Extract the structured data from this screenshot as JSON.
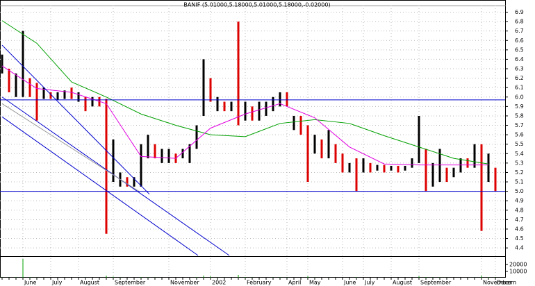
{
  "chart_data": {
    "type": "ohlc",
    "title": "BANIF (5.01000,5.18000,5.01000,5.18000,-0.02000)",
    "categories": [
      null,
      null,
      null,
      "June",
      null,
      null,
      null,
      "July",
      null,
      null,
      null,
      "August",
      null,
      null,
      null,
      null,
      "September",
      null,
      null,
      null,
      null,
      null,
      null,
      null,
      "November",
      null,
      null,
      null,
      null,
      null,
      "2002",
      null,
      null,
      null,
      null,
      "February",
      null,
      null,
      null,
      null,
      null,
      "April",
      null,
      null,
      "May",
      null,
      null,
      null,
      null,
      "June",
      null,
      null,
      "July",
      null,
      null,
      null,
      "August",
      null,
      null,
      null,
      "September",
      null,
      null,
      null,
      null,
      null,
      null,
      null,
      null,
      "November",
      null,
      "Decem"
    ],
    "high": [
      6.45,
      6.3,
      6.25,
      6.7,
      6.2,
      6.15,
      6.1,
      6.05,
      6.05,
      6.07,
      6.1,
      6.05,
      6.0,
      6.0,
      6.0,
      5.98,
      5.55,
      5.2,
      5.15,
      5.15,
      5.5,
      5.6,
      5.5,
      5.45,
      5.45,
      5.4,
      5.45,
      5.5,
      5.7,
      6.4,
      6.2,
      6.0,
      5.95,
      5.95,
      6.8,
      5.95,
      5.9,
      5.95,
      5.95,
      6.0,
      6.05,
      6.05,
      5.8,
      5.8,
      5.7,
      5.6,
      5.55,
      5.65,
      5.5,
      5.4,
      5.3,
      5.35,
      5.35,
      5.3,
      5.28,
      5.28,
      5.27,
      5.27,
      5.27,
      5.35,
      5.8,
      5.45,
      5.3,
      5.45,
      5.25,
      5.25,
      5.35,
      5.35,
      5.5,
      5.5,
      5.4,
      5.25
    ],
    "low": [
      6.25,
      6.05,
      6.0,
      6.0,
      6.0,
      5.75,
      5.98,
      5.98,
      5.97,
      5.98,
      5.98,
      5.95,
      5.85,
      5.9,
      5.9,
      4.55,
      5.1,
      5.05,
      5.05,
      5.05,
      5.05,
      5.35,
      5.35,
      5.3,
      5.3,
      5.3,
      5.35,
      5.3,
      5.45,
      5.8,
      5.95,
      5.85,
      5.85,
      5.85,
      5.7,
      5.75,
      5.75,
      5.75,
      5.8,
      5.85,
      5.9,
      5.9,
      5.65,
      5.6,
      5.1,
      5.4,
      5.35,
      5.35,
      5.3,
      5.2,
      5.2,
      5.0,
      5.2,
      5.2,
      5.22,
      5.2,
      5.22,
      5.2,
      5.22,
      5.25,
      5.3,
      5.0,
      5.05,
      5.1,
      5.1,
      5.15,
      5.2,
      5.25,
      5.25,
      4.58,
      5.1,
      5.0
    ],
    "bar_colors": [
      "#000",
      "#d00",
      "#000",
      "#000",
      "#d00",
      "#d00",
      "#000",
      "#d00",
      "#000",
      "#000",
      "#d00",
      "#000",
      "#d00",
      "#000",
      "#d00",
      "#d00",
      "#000",
      "#000",
      "#d00",
      "#000",
      "#000",
      "#000",
      "#d00",
      "#000",
      "#000",
      "#d00",
      "#000",
      "#000",
      "#000",
      "#000",
      "#d00",
      "#000",
      "#d00",
      "#000",
      "#d00",
      "#000",
      "#d00",
      "#000",
      "#000",
      "#000",
      "#000",
      "#d00",
      "#000",
      "#d00",
      "#d00",
      "#000",
      "#d00",
      "#000",
      "#d00",
      "#d00",
      "#000",
      "#d00",
      "#000",
      "#d00",
      "#000",
      "#d00",
      "#000",
      "#d00",
      "#000",
      "#000",
      "#000",
      "#d00",
      "#000",
      "#000",
      "#d00",
      "#000",
      "#000",
      "#d00",
      "#000",
      "#d00",
      "#000",
      "#d00"
    ],
    "volume": [
      1500,
      1200,
      1800,
      28000,
      2000,
      1500,
      1200,
      1000,
      1300,
      1100,
      1000,
      1200,
      1500,
      1000,
      1200,
      4000,
      2500,
      1500,
      1000,
      1200,
      2000,
      1800,
      1500,
      1200,
      1000,
      1100,
      1000,
      1300,
      2000,
      4000,
      3000,
      1500,
      1200,
      1000,
      5000,
      2000,
      1500,
      1200,
      1300,
      1500,
      1800,
      1500,
      1200,
      1000,
      3000,
      1500,
      1200,
      1300,
      1100,
      1000,
      1000,
      2000,
      1000,
      1000,
      900,
      900,
      900,
      900,
      900,
      1000,
      3000,
      2000,
      1500,
      1800,
      1200,
      1100,
      1000,
      1200,
      1500,
      4000,
      2000,
      1500
    ],
    "overlays": [
      {
        "color": "#00a000",
        "x": [
          0,
          5,
          10,
          15,
          20,
          25,
          30,
          35,
          40,
          45,
          50,
          55,
          60,
          65,
          70
        ],
        "values": [
          6.81,
          6.57,
          6.16,
          6.0,
          5.82,
          5.7,
          5.6,
          5.58,
          5.72,
          5.76,
          5.72,
          5.59,
          5.47,
          5.35,
          5.29
        ]
      },
      {
        "color": "#e000e0",
        "x": [
          0,
          5,
          10,
          15,
          20,
          25,
          30,
          35,
          40,
          45,
          50,
          55,
          60,
          65,
          70
        ],
        "values": [
          6.33,
          6.09,
          6.05,
          5.93,
          5.37,
          5.35,
          5.67,
          5.82,
          5.93,
          5.78,
          5.47,
          5.29,
          5.28,
          5.28,
          5.28
        ]
      },
      {
        "color": "#0000cc",
        "x": [
          0,
          21.2
        ],
        "values": [
          6.55,
          4.97
        ]
      },
      {
        "color": "#0000cc",
        "x": [
          0,
          32.7
        ],
        "values": [
          6.0,
          4.32
        ]
      },
      {
        "color": "#0000cc",
        "x": [
          0,
          28.2
        ],
        "values": [
          5.79,
          4.32
        ]
      },
      {
        "color": "#999999",
        "x": [
          0,
          19.7
        ],
        "values": [
          5.93,
          5.0
        ]
      },
      {
        "color": "#0000cc",
        "x": [
          -0.3,
          72.4
        ],
        "values": [
          5.97,
          5.97
        ]
      },
      {
        "color": "#0000cc",
        "x": [
          -0.3,
          72.4
        ],
        "values": [
          5.0,
          5.0
        ]
      }
    ],
    "ylim": [
      4.32,
      6.97
    ],
    "yticks": [
      6.9,
      6.8,
      6.7,
      6.6,
      6.5,
      6.4,
      6.3,
      6.2,
      6.1,
      {
        "value": 6,
        "label": "6.0"
      },
      5.9,
      5.8,
      5.7,
      5.6,
      5.5,
      5.4,
      5.3,
      5.2,
      5.1,
      {
        "value": 5,
        "label": "5.0"
      },
      4.9,
      4.8,
      4.7,
      4.6,
      4.5,
      4.4
    ],
    "volume_ylim": [
      0,
      30000
    ],
    "volume_yticks": [
      20000,
      10000
    ],
    "grid": true
  }
}
